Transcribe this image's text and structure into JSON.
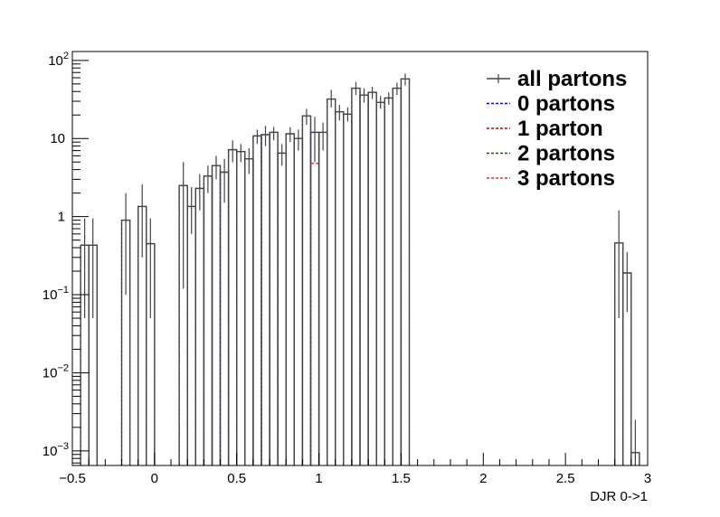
{
  "chart_data": {
    "type": "histogram",
    "xlabel": "DJR 0->1",
    "ylabel": "",
    "log_y": true,
    "xlim": [
      -0.5,
      3.0
    ],
    "ylim": [
      0.00065,
      130
    ],
    "bin_width": 0.05,
    "x_ticks": [
      {
        "v": -0.5,
        "label": "−0.5"
      },
      {
        "v": 0,
        "label": "0"
      },
      {
        "v": 0.5,
        "label": "0.5"
      },
      {
        "v": 1,
        "label": "1"
      },
      {
        "v": 1.5,
        "label": "1.5"
      },
      {
        "v": 2,
        "label": "2"
      },
      {
        "v": 2.5,
        "label": "2.5"
      },
      {
        "v": 3,
        "label": "3"
      }
    ],
    "y_ticks": [
      {
        "v": 0.001,
        "base": "10",
        "exp": "−3"
      },
      {
        "v": 0.01,
        "base": "10",
        "exp": "−2"
      },
      {
        "v": 0.1,
        "base": "10",
        "exp": "−1"
      },
      {
        "v": 1,
        "base": "1",
        "exp": ""
      },
      {
        "v": 10,
        "base": "10",
        "exp": ""
      },
      {
        "v": 100,
        "base": "10",
        "exp": "2"
      }
    ],
    "legend": {
      "placement": "top-right",
      "entries": [
        {
          "label": "all partons",
          "color": "#444444",
          "style": "solid"
        },
        {
          "label": "0 partons",
          "color": "#0000cc",
          "style": "dashed"
        },
        {
          "label": "1 parton",
          "color": "#cc0000",
          "style": "dashed"
        },
        {
          "label": "2 partons",
          "color": "#006600",
          "style": "dashed"
        },
        {
          "label": "3 partons",
          "color": "#cc3333",
          "style": "dashed"
        }
      ]
    },
    "series": [
      {
        "name": "all partons",
        "color": "#444444",
        "bins": [
          {
            "x": -0.45,
            "y": 0.43,
            "err": [
              0.05,
              0.95
            ]
          },
          {
            "x": -0.4,
            "y": 0.43,
            "err": [
              0.05,
              0.95
            ]
          },
          {
            "x": -0.2,
            "y": 0.9,
            "err": [
              0.1,
              2.0
            ]
          },
          {
            "x": -0.1,
            "y": 1.35,
            "err": [
              0.3,
              2.6
            ]
          },
          {
            "x": -0.05,
            "y": 0.45,
            "err": [
              0.05,
              0.95
            ]
          },
          {
            "x": 0.15,
            "y": 2.5,
            "err": [
              0.12,
              5.0
            ]
          },
          {
            "x": 0.2,
            "y": 1.35,
            "err": [
              0.6,
              2.4
            ]
          },
          {
            "x": 0.25,
            "y": 2.3,
            "err": [
              1.2,
              3.5
            ]
          },
          {
            "x": 0.3,
            "y": 3.3,
            "err": [
              2.0,
              4.5
            ]
          },
          {
            "x": 0.35,
            "y": 4.5,
            "err": [
              3.0,
              6.0
            ]
          },
          {
            "x": 0.4,
            "y": 3.7,
            "err": [
              1.5,
              5.5
            ]
          },
          {
            "x": 0.45,
            "y": 7.2,
            "err": [
              5.0,
              9.5
            ]
          },
          {
            "x": 0.5,
            "y": 6.8,
            "err": [
              5.0,
              8.5
            ]
          },
          {
            "x": 0.55,
            "y": 5.5,
            "err": [
              3.5,
              7.5
            ]
          },
          {
            "x": 0.6,
            "y": 10.8,
            "err": [
              8.5,
              13.0
            ]
          },
          {
            "x": 0.65,
            "y": 11.2,
            "err": [
              8.0,
              14.5
            ]
          },
          {
            "x": 0.7,
            "y": 12.0,
            "err": [
              9.5,
              14.0
            ]
          },
          {
            "x": 0.75,
            "y": 6.5,
            "err": [
              4.5,
              8.5
            ]
          },
          {
            "x": 0.8,
            "y": 11.5,
            "err": [
              9.0,
              14.0
            ]
          },
          {
            "x": 0.85,
            "y": 10.0,
            "err": [
              7.0,
              13.0
            ]
          },
          {
            "x": 0.9,
            "y": 19.5,
            "err": [
              15.0,
              24.0
            ]
          },
          {
            "x": 0.95,
            "y": 12.0,
            "err": [
              5.0,
              19.0
            ]
          },
          {
            "x": 1.0,
            "y": 12.0,
            "err": [
              7.0,
              16.0
            ]
          },
          {
            "x": 1.05,
            "y": 32.0,
            "err": [
              25.0,
              42.0
            ]
          },
          {
            "x": 1.1,
            "y": 22.0,
            "err": [
              17.0,
              27.0
            ]
          },
          {
            "x": 1.15,
            "y": 20.5,
            "err": [
              16.5,
              25.0
            ]
          },
          {
            "x": 1.2,
            "y": 44.0,
            "err": [
              36.0,
              53.0
            ]
          },
          {
            "x": 1.25,
            "y": 36.0,
            "err": [
              29.0,
              44.0
            ]
          },
          {
            "x": 1.3,
            "y": 39.0,
            "err": [
              32.0,
              46.0
            ]
          },
          {
            "x": 1.35,
            "y": 29.0,
            "err": [
              24.0,
              35.0
            ]
          },
          {
            "x": 1.4,
            "y": 33.0,
            "err": [
              27.0,
              39.0
            ]
          },
          {
            "x": 1.45,
            "y": 44.0,
            "err": [
              36.0,
              52.0
            ]
          },
          {
            "x": 1.5,
            "y": 58.0,
            "err": [
              48.0,
              68.0
            ]
          },
          {
            "x": 2.8,
            "y": 0.46,
            "err": [
              0.05,
              1.2
            ]
          },
          {
            "x": 2.85,
            "y": 0.19,
            "err": [
              0.06,
              0.35
            ]
          },
          {
            "x": 2.9,
            "y": 0.00095,
            "err": [
              0.00065,
              0.0025
            ]
          }
        ]
      },
      {
        "name": "0 partons",
        "color": "#0000cc",
        "bins": [
          {
            "x": -0.45,
            "y": 0.43
          },
          {
            "x": -0.4,
            "y": 0.43
          },
          {
            "x": -0.2,
            "y": 0.9
          },
          {
            "x": -0.1,
            "y": 1.35
          },
          {
            "x": -0.05,
            "y": 0.45
          },
          {
            "x": 0.15,
            "y": 2.5
          },
          {
            "x": 0.2,
            "y": 1.35
          },
          {
            "x": 0.25,
            "y": 2.3
          },
          {
            "x": 0.3,
            "y": 3.3
          },
          {
            "x": 0.35,
            "y": 4.5
          },
          {
            "x": 0.4,
            "y": 3.7
          },
          {
            "x": 0.45,
            "y": 7.2
          },
          {
            "x": 0.5,
            "y": 6.8
          },
          {
            "x": 0.55,
            "y": 5.5
          },
          {
            "x": 0.6,
            "y": 10.8
          },
          {
            "x": 0.65,
            "y": 11.2
          },
          {
            "x": 0.7,
            "y": 12.0
          },
          {
            "x": 0.75,
            "y": 6.5
          },
          {
            "x": 0.8,
            "y": 11.5
          },
          {
            "x": 0.85,
            "y": 10.0
          },
          {
            "x": 0.9,
            "y": 19.5
          },
          {
            "x": 0.95,
            "y": 12.0
          }
        ]
      },
      {
        "name": "1 parton",
        "color": "#cc0000",
        "bins": [
          {
            "x": 0.95,
            "y": 4.8
          }
        ]
      },
      {
        "name": "3 partons",
        "color": "#cc3333",
        "bins": [
          {
            "x": 1.0,
            "y": 12.0
          },
          {
            "x": 1.05,
            "y": 32.0
          },
          {
            "x": 1.1,
            "y": 22.0
          },
          {
            "x": 1.15,
            "y": 20.5
          },
          {
            "x": 1.2,
            "y": 44.0
          },
          {
            "x": 1.25,
            "y": 36.0
          },
          {
            "x": 1.3,
            "y": 39.0
          },
          {
            "x": 1.35,
            "y": 29.0
          },
          {
            "x": 1.4,
            "y": 33.0
          },
          {
            "x": 1.45,
            "y": 44.0
          },
          {
            "x": 1.5,
            "y": 58.0
          },
          {
            "x": 2.8,
            "y": 0.46
          },
          {
            "x": 2.85,
            "y": 0.19
          },
          {
            "x": 2.9,
            "y": 0.00095
          }
        ]
      }
    ]
  }
}
